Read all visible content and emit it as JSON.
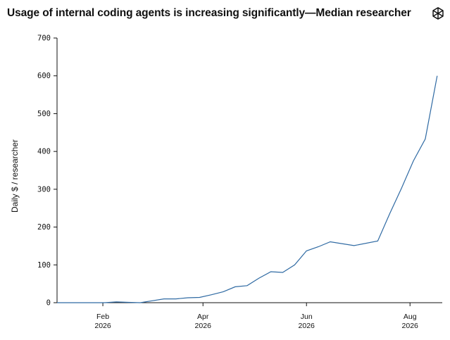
{
  "title": "Usage of internal coding agents is increasing significantly—Median researcher",
  "logo": "openai-logo-icon",
  "chart_data": {
    "type": "line",
    "title": "Usage of internal coding agents is increasing significantly—Median researcher",
    "xlabel": "",
    "ylabel": "Daily $ / researcher",
    "ylim": [
      0,
      700
    ],
    "yticks": [
      0,
      100,
      200,
      300,
      400,
      500,
      600,
      700
    ],
    "xlim": [
      "2026-01-05",
      "2026-08-20"
    ],
    "xticks": [
      {
        "date": "2026-02-01",
        "label": "Feb",
        "sublabel": "2026"
      },
      {
        "date": "2026-04-01",
        "label": "Apr",
        "sublabel": "2026"
      },
      {
        "date": "2026-06-01",
        "label": "Jun",
        "sublabel": "2026"
      },
      {
        "date": "2026-08-01",
        "label": "Aug",
        "sublabel": "2026"
      }
    ],
    "line_color": "#2f6aa3",
    "grid": false,
    "series": [
      {
        "name": "",
        "x": [
          "2026-01-05",
          "2026-01-12",
          "2026-01-19",
          "2026-01-26",
          "2026-02-02",
          "2026-02-09",
          "2026-02-16",
          "2026-02-23",
          "2026-03-02",
          "2026-03-09",
          "2026-03-16",
          "2026-03-23",
          "2026-03-30",
          "2026-04-06",
          "2026-04-13",
          "2026-04-20",
          "2026-04-27",
          "2026-05-04",
          "2026-05-11",
          "2026-05-18",
          "2026-05-25",
          "2026-06-01",
          "2026-06-08",
          "2026-06-15",
          "2026-06-29",
          "2026-07-13",
          "2026-07-20",
          "2026-07-27",
          "2026-08-03",
          "2026-08-10",
          "2026-08-17"
        ],
        "values": [
          0,
          0,
          0,
          0,
          0,
          2,
          1,
          0,
          5,
          10,
          10,
          13,
          14,
          21,
          29,
          42,
          45,
          65,
          82,
          80,
          100,
          137,
          148,
          161,
          151,
          163,
          235,
          303,
          375,
          433,
          600
        ]
      }
    ]
  }
}
